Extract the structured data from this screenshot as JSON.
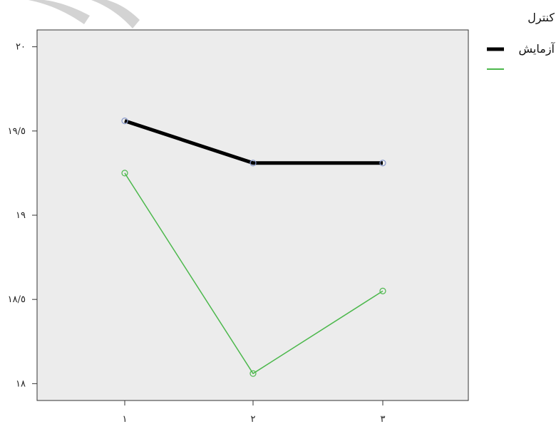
{
  "chart_data": {
    "type": "line",
    "title": "",
    "xlabel": "",
    "ylabel": "",
    "categories": [
      "١",
      "٢",
      "٣"
    ],
    "x": [
      1,
      2,
      3
    ],
    "ylim": [
      17.9,
      20.1
    ],
    "yticks": [
      18,
      18.5,
      19,
      19.5,
      20
    ],
    "ytick_labels": [
      "١٨",
      "١٨/٥",
      "١٩",
      "١٩/٥",
      "٢٠"
    ],
    "grid": false,
    "legend_position": "top-right",
    "series": [
      {
        "name": "آزمایش",
        "values": [
          19.56,
          19.31,
          19.31
        ],
        "color": "#000000",
        "marker_color": "#8899cc"
      },
      {
        "name": "کنترل",
        "values": [
          19.25,
          18.06,
          18.55
        ],
        "color": "#4cb84c",
        "marker_color": "#4cb84c"
      }
    ],
    "legend_order": [
      "کنترل",
      "آزمایش"
    ]
  }
}
